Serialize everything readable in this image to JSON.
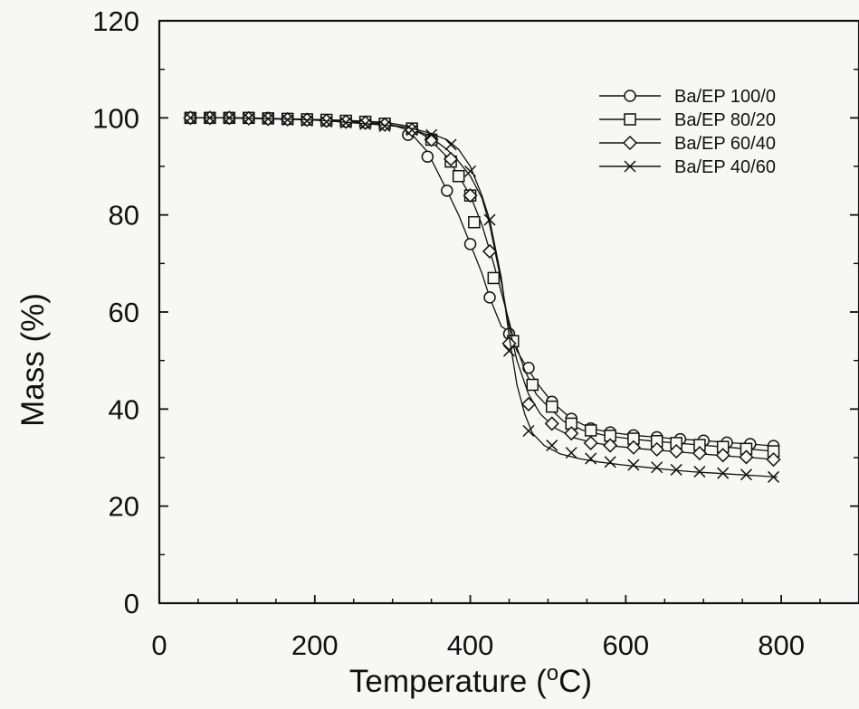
{
  "chart_data": {
    "type": "line",
    "title": "",
    "xlabel": "Temperature (",
    "xlabel_superscript": "o",
    "xlabel_suffix": "C)",
    "ylabel": "Mass (%)",
    "xlim": [
      0,
      900
    ],
    "ylim": [
      0,
      120
    ],
    "x_ticks": [
      0,
      200,
      400,
      600,
      800
    ],
    "y_ticks": [
      0,
      20,
      40,
      60,
      80,
      100,
      120
    ],
    "grid": false,
    "legend_position": "top-right",
    "series": [
      {
        "name": "Ba/EP 100/0",
        "marker": "circle",
        "x": [
          40,
          65,
          90,
          115,
          140,
          165,
          190,
          215,
          240,
          265,
          290,
          320,
          345,
          370,
          385,
          400,
          415,
          425,
          440,
          450,
          460,
          475,
          490,
          505,
          530,
          555,
          580,
          610,
          640,
          670,
          700,
          730,
          760,
          790
        ],
        "y": [
          100,
          100,
          100,
          99.9,
          99.9,
          99.8,
          99.7,
          99.6,
          99.4,
          99.2,
          99,
          97.5,
          93,
          85,
          80,
          74,
          68,
          63,
          57,
          56,
          52,
          48,
          44.5,
          41.5,
          38,
          36,
          35.2,
          34.6,
          34.2,
          33.8,
          33.5,
          33.1,
          32.8,
          32.4
        ],
        "markers": [
          [
            40,
            100
          ],
          [
            65,
            100
          ],
          [
            90,
            100
          ],
          [
            115,
            100
          ],
          [
            140,
            100
          ],
          [
            165,
            99.8
          ],
          [
            190,
            99.6
          ],
          [
            215,
            99.4
          ],
          [
            240,
            99.2
          ],
          [
            265,
            99
          ],
          [
            290,
            98.8
          ],
          [
            320,
            96.5
          ],
          [
            345,
            92
          ],
          [
            370,
            85
          ],
          [
            400,
            74
          ],
          [
            425,
            63
          ],
          [
            450,
            55.5
          ],
          [
            475,
            48.5
          ],
          [
            505,
            41.5
          ],
          [
            530,
            38
          ],
          [
            555,
            36
          ],
          [
            580,
            35.2
          ],
          [
            610,
            34.6
          ],
          [
            640,
            34.2
          ],
          [
            670,
            33.8
          ],
          [
            700,
            33.5
          ],
          [
            730,
            33.1
          ],
          [
            760,
            32.8
          ],
          [
            790,
            32.4
          ]
        ]
      },
      {
        "name": "Ba/EP 80/20",
        "marker": "square",
        "x": [
          40,
          65,
          90,
          115,
          140,
          165,
          190,
          215,
          240,
          265,
          290,
          320,
          345,
          370,
          385,
          400,
          415,
          430,
          445,
          455,
          470,
          485,
          500,
          520,
          545,
          575,
          605,
          635,
          665,
          695,
          725,
          755,
          790
        ],
        "y": [
          100,
          100,
          100,
          100,
          99.9,
          99.8,
          99.7,
          99.6,
          99.5,
          99.3,
          99.1,
          98.3,
          96,
          92,
          88,
          84,
          78,
          70,
          61,
          55,
          48,
          43,
          40.5,
          37.5,
          35.6,
          34.5,
          33.9,
          33.4,
          33,
          32.6,
          32.2,
          31.8,
          31.3
        ],
        "markers": [
          [
            40,
            100
          ],
          [
            65,
            100
          ],
          [
            90,
            100
          ],
          [
            115,
            100
          ],
          [
            140,
            99.9
          ],
          [
            165,
            99.8
          ],
          [
            190,
            99.7
          ],
          [
            215,
            99.6
          ],
          [
            240,
            99.4
          ],
          [
            265,
            99.2
          ],
          [
            290,
            98.8
          ],
          [
            325,
            97.8
          ],
          [
            350,
            95.5
          ],
          [
            375,
            91
          ],
          [
            385,
            88
          ],
          [
            400,
            84
          ],
          [
            405,
            78.5
          ],
          [
            430,
            67
          ],
          [
            455,
            54
          ],
          [
            480,
            45
          ],
          [
            505,
            40.5
          ],
          [
            530,
            37
          ],
          [
            555,
            35.6
          ],
          [
            580,
            34.5
          ],
          [
            610,
            33.9
          ],
          [
            640,
            33.4
          ],
          [
            665,
            33
          ],
          [
            695,
            32.6
          ],
          [
            725,
            32.2
          ],
          [
            755,
            31.8
          ],
          [
            790,
            31.3
          ]
        ]
      },
      {
        "name": "Ba/EP 60/40",
        "marker": "diamond",
        "x": [
          40,
          65,
          90,
          115,
          140,
          165,
          190,
          215,
          240,
          265,
          290,
          320,
          345,
          370,
          385,
          400,
          415,
          425,
          440,
          450,
          460,
          475,
          490,
          510,
          535,
          560,
          590,
          620,
          650,
          680,
          710,
          740,
          770,
          790
        ],
        "y": [
          100,
          100,
          100,
          99.9,
          99.8,
          99.7,
          99.6,
          99.5,
          99.3,
          99,
          98.7,
          98,
          96.5,
          93.5,
          91,
          88,
          83.5,
          78,
          66,
          57,
          50,
          43,
          39,
          36,
          34,
          33,
          32.3,
          31.8,
          31.4,
          31,
          30.6,
          30.2,
          29.9,
          29.6
        ],
        "markers": [
          [
            40,
            100
          ],
          [
            65,
            100
          ],
          [
            90,
            100
          ],
          [
            115,
            99.9
          ],
          [
            140,
            99.8
          ],
          [
            165,
            99.7
          ],
          [
            190,
            99.6
          ],
          [
            215,
            99.4
          ],
          [
            240,
            99.2
          ],
          [
            265,
            99
          ],
          [
            290,
            98.6
          ],
          [
            325,
            97.5
          ],
          [
            350,
            95.5
          ],
          [
            375,
            91.5
          ],
          [
            400,
            84
          ],
          [
            425,
            72.5
          ],
          [
            450,
            53.5
          ],
          [
            475,
            41
          ],
          [
            505,
            37
          ],
          [
            530,
            35
          ],
          [
            555,
            33
          ],
          [
            580,
            32.5
          ],
          [
            610,
            32.1
          ],
          [
            640,
            31.7
          ],
          [
            665,
            31.3
          ],
          [
            695,
            30.9
          ],
          [
            725,
            30.5
          ],
          [
            755,
            30.1
          ],
          [
            790,
            29.6
          ]
        ]
      },
      {
        "name": "Ba/EP 40/60",
        "marker": "x",
        "x": [
          40,
          65,
          90,
          115,
          140,
          165,
          190,
          215,
          240,
          265,
          290,
          320,
          345,
          370,
          385,
          400,
          415,
          425,
          440,
          450,
          460,
          470,
          480,
          495,
          515,
          540,
          565,
          595,
          625,
          655,
          685,
          715,
          745,
          775,
          795
        ],
        "y": [
          100,
          100,
          100,
          99.9,
          99.8,
          99.7,
          99.6,
          99.4,
          99.1,
          98.8,
          98.5,
          98,
          97,
          95.5,
          93.5,
          90,
          84,
          79,
          67,
          55,
          45,
          39,
          35,
          32.5,
          30.8,
          29.8,
          29.1,
          28.5,
          28,
          27.5,
          27.1,
          26.8,
          26.5,
          26.2,
          26
        ],
        "markers": [
          [
            40,
            100
          ],
          [
            65,
            100
          ],
          [
            90,
            100
          ],
          [
            115,
            99.9
          ],
          [
            140,
            99.8
          ],
          [
            165,
            99.6
          ],
          [
            190,
            99.4
          ],
          [
            215,
            99.2
          ],
          [
            240,
            99
          ],
          [
            265,
            98.7
          ],
          [
            290,
            98.3
          ],
          [
            325,
            97.5
          ],
          [
            350,
            96.5
          ],
          [
            375,
            94.5
          ],
          [
            400,
            89
          ],
          [
            425,
            79
          ],
          [
            450,
            52
          ],
          [
            475,
            35.5
          ],
          [
            505,
            32.5
          ],
          [
            530,
            31
          ],
          [
            555,
            29.8
          ],
          [
            580,
            29.1
          ],
          [
            610,
            28.5
          ],
          [
            640,
            28
          ],
          [
            665,
            27.5
          ],
          [
            695,
            27.1
          ],
          [
            725,
            26.8
          ],
          [
            755,
            26.5
          ],
          [
            790,
            26
          ]
        ]
      }
    ]
  }
}
